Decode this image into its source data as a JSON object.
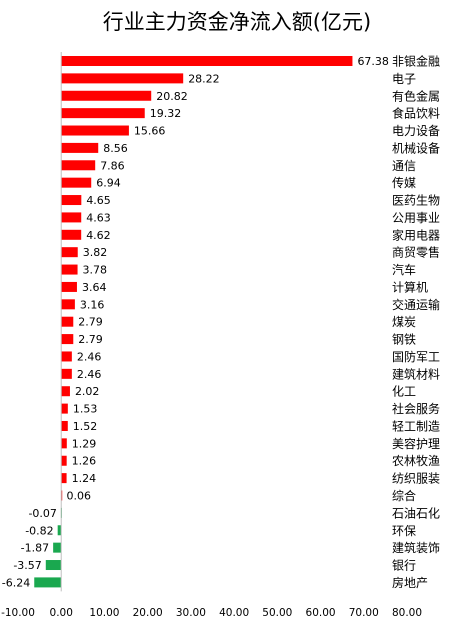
{
  "chart_data": {
    "type": "bar",
    "orientation": "horizontal",
    "title": "行业主力资金净流入额(亿元)",
    "categories": [
      "非银金融",
      "电子",
      "有色金属",
      "食品饮料",
      "电力设备",
      "机械设备",
      "通信",
      "传媒",
      "医药生物",
      "公用事业",
      "家用电器",
      "商贸零售",
      "汽车",
      "计算机",
      "交通运输",
      "煤炭",
      "钢铁",
      "国防军工",
      "建筑材料",
      "化工",
      "社会服务",
      "轻工制造",
      "美容护理",
      "农林牧渔",
      "纺织服装",
      "综合",
      "石油石化",
      "环保",
      "建筑装饰",
      "银行",
      "房地产"
    ],
    "values": [
      67.38,
      28.22,
      20.82,
      19.32,
      15.66,
      8.56,
      7.86,
      6.94,
      4.65,
      4.63,
      4.62,
      3.82,
      3.78,
      3.64,
      3.16,
      2.79,
      2.79,
      2.46,
      2.46,
      2.02,
      1.53,
      1.52,
      1.29,
      1.26,
      1.24,
      0.06,
      -0.07,
      -0.82,
      -1.87,
      -3.57,
      -6.24
    ],
    "value_labels": [
      "67.38",
      "28.22",
      "20.82",
      "19.32",
      "15.66",
      "8.56",
      "7.86",
      "6.94",
      "4.65",
      "4.63",
      "4.62",
      "3.82",
      "3.78",
      "3.64",
      "3.16",
      "2.79",
      "2.79",
      "2.46",
      "2.46",
      "2.02",
      "1.53",
      "1.52",
      "1.29",
      "1.26",
      "1.24",
      "0.06",
      "-0.07",
      "-0.82",
      "-1.87",
      "-3.57",
      "-6.24"
    ],
    "xlim": [
      -10,
      80
    ],
    "xticks": [
      "-10.00",
      "0.00",
      "10.00",
      "20.00",
      "30.00",
      "40.00",
      "50.00",
      "60.00",
      "70.00",
      "80.00"
    ],
    "xtick_values": [
      -10,
      0,
      10,
      20,
      30,
      40,
      50,
      60,
      70,
      80
    ],
    "grid": false,
    "colors": {
      "positive": "#ff0000",
      "negative": "#1aa84f",
      "axis": "#bfbfbf"
    }
  }
}
